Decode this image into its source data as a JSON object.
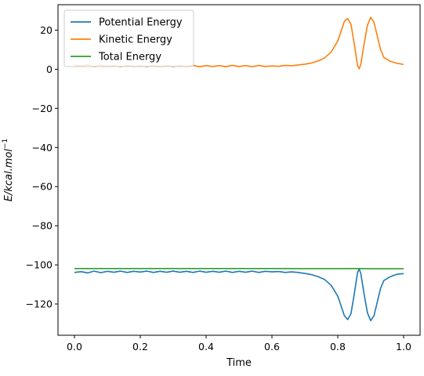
{
  "chart_data": {
    "type": "line",
    "title": "",
    "xlabel": "Time",
    "ylabel": "E/kcal.mol",
    "ylabel_superscript": "−1",
    "xlim": [
      -0.05,
      1.05
    ],
    "ylim": [
      -136,
      33
    ],
    "xticks": [
      0.0,
      0.2,
      0.4,
      0.6,
      0.8,
      1.0
    ],
    "xtick_labels": [
      "0.0",
      "0.2",
      "0.4",
      "0.6",
      "0.8",
      "1.0"
    ],
    "yticks": [
      20,
      0,
      -20,
      -40,
      -60,
      -80,
      -100,
      -120
    ],
    "ytick_labels": [
      "20",
      "0",
      "−20",
      "−40",
      "−60",
      "−80",
      "−100",
      "−120"
    ],
    "grid": false,
    "legend_position": "top-left",
    "series": [
      {
        "name": "Potential Energy",
        "color": "#1f77b4",
        "x": [
          0,
          0.02,
          0.04,
          0.06,
          0.08,
          0.1,
          0.12,
          0.14,
          0.16,
          0.18,
          0.2,
          0.22,
          0.24,
          0.26,
          0.28,
          0.3,
          0.32,
          0.34,
          0.36,
          0.38,
          0.4,
          0.42,
          0.44,
          0.46,
          0.48,
          0.5,
          0.52,
          0.54,
          0.56,
          0.58,
          0.6,
          0.62,
          0.64,
          0.66,
          0.68,
          0.7,
          0.72,
          0.74,
          0.76,
          0.78,
          0.8,
          0.81,
          0.82,
          0.83,
          0.84,
          0.85,
          0.86,
          0.865,
          0.87,
          0.88,
          0.89,
          0.9,
          0.91,
          0.92,
          0.93,
          0.94,
          0.96,
          0.98,
          1.0
        ],
        "y": [
          -103.9,
          -103.5,
          -104.1,
          -103.2,
          -104.0,
          -103.3,
          -103.8,
          -103.2,
          -103.9,
          -103.3,
          -103.7,
          -103.2,
          -103.9,
          -103.3,
          -103.8,
          -103.2,
          -103.8,
          -103.3,
          -103.9,
          -103.2,
          -103.8,
          -103.3,
          -103.8,
          -103.2,
          -103.9,
          -103.3,
          -103.8,
          -103.2,
          -103.9,
          -103.3,
          -103.6,
          -103.4,
          -103.9,
          -103.6,
          -103.9,
          -104.4,
          -105.0,
          -106.0,
          -107.5,
          -110.5,
          -116.0,
          -121.0,
          -126.0,
          -128.0,
          -125.0,
          -115.0,
          -104.0,
          -102.0,
          -104.5,
          -115.0,
          -124.5,
          -128.5,
          -126.0,
          -119.0,
          -112.0,
          -108.0,
          -106.0,
          -104.8,
          -104.5
        ]
      },
      {
        "name": "Kinetic Energy",
        "color": "#ff7f0e",
        "x": [
          0,
          0.02,
          0.04,
          0.06,
          0.08,
          0.1,
          0.12,
          0.14,
          0.16,
          0.18,
          0.2,
          0.22,
          0.24,
          0.26,
          0.28,
          0.3,
          0.32,
          0.34,
          0.36,
          0.38,
          0.4,
          0.42,
          0.44,
          0.46,
          0.48,
          0.5,
          0.52,
          0.54,
          0.56,
          0.58,
          0.6,
          0.62,
          0.64,
          0.66,
          0.68,
          0.7,
          0.72,
          0.74,
          0.76,
          0.78,
          0.8,
          0.81,
          0.82,
          0.83,
          0.84,
          0.85,
          0.86,
          0.865,
          0.87,
          0.88,
          0.89,
          0.9,
          0.91,
          0.92,
          0.93,
          0.94,
          0.96,
          0.98,
          1.0
        ],
        "y": [
          2.0,
          1.6,
          2.2,
          1.3,
          2.1,
          1.4,
          1.9,
          1.3,
          2.0,
          1.4,
          1.8,
          1.3,
          2.0,
          1.4,
          1.9,
          1.3,
          1.9,
          1.4,
          2.0,
          1.3,
          1.9,
          1.4,
          1.9,
          1.3,
          2.0,
          1.4,
          1.9,
          1.3,
          2.0,
          1.4,
          1.7,
          1.5,
          2.0,
          1.8,
          2.2,
          2.6,
          3.2,
          4.2,
          5.8,
          8.8,
          14.5,
          19.5,
          24.5,
          26.0,
          23.0,
          13.0,
          2.0,
          0.2,
          2.5,
          13.0,
          22.5,
          26.5,
          24.0,
          17.0,
          10.0,
          6.0,
          4.0,
          3.0,
          2.5
        ]
      },
      {
        "name": "Total Energy",
        "color": "#2ca02c",
        "x": [
          0,
          0.2,
          0.4,
          0.6,
          0.8,
          0.86,
          0.9,
          1.0
        ],
        "y": [
          -101.9,
          -101.9,
          -101.9,
          -101.9,
          -101.95,
          -101.9,
          -102.0,
          -102.0
        ]
      }
    ]
  }
}
